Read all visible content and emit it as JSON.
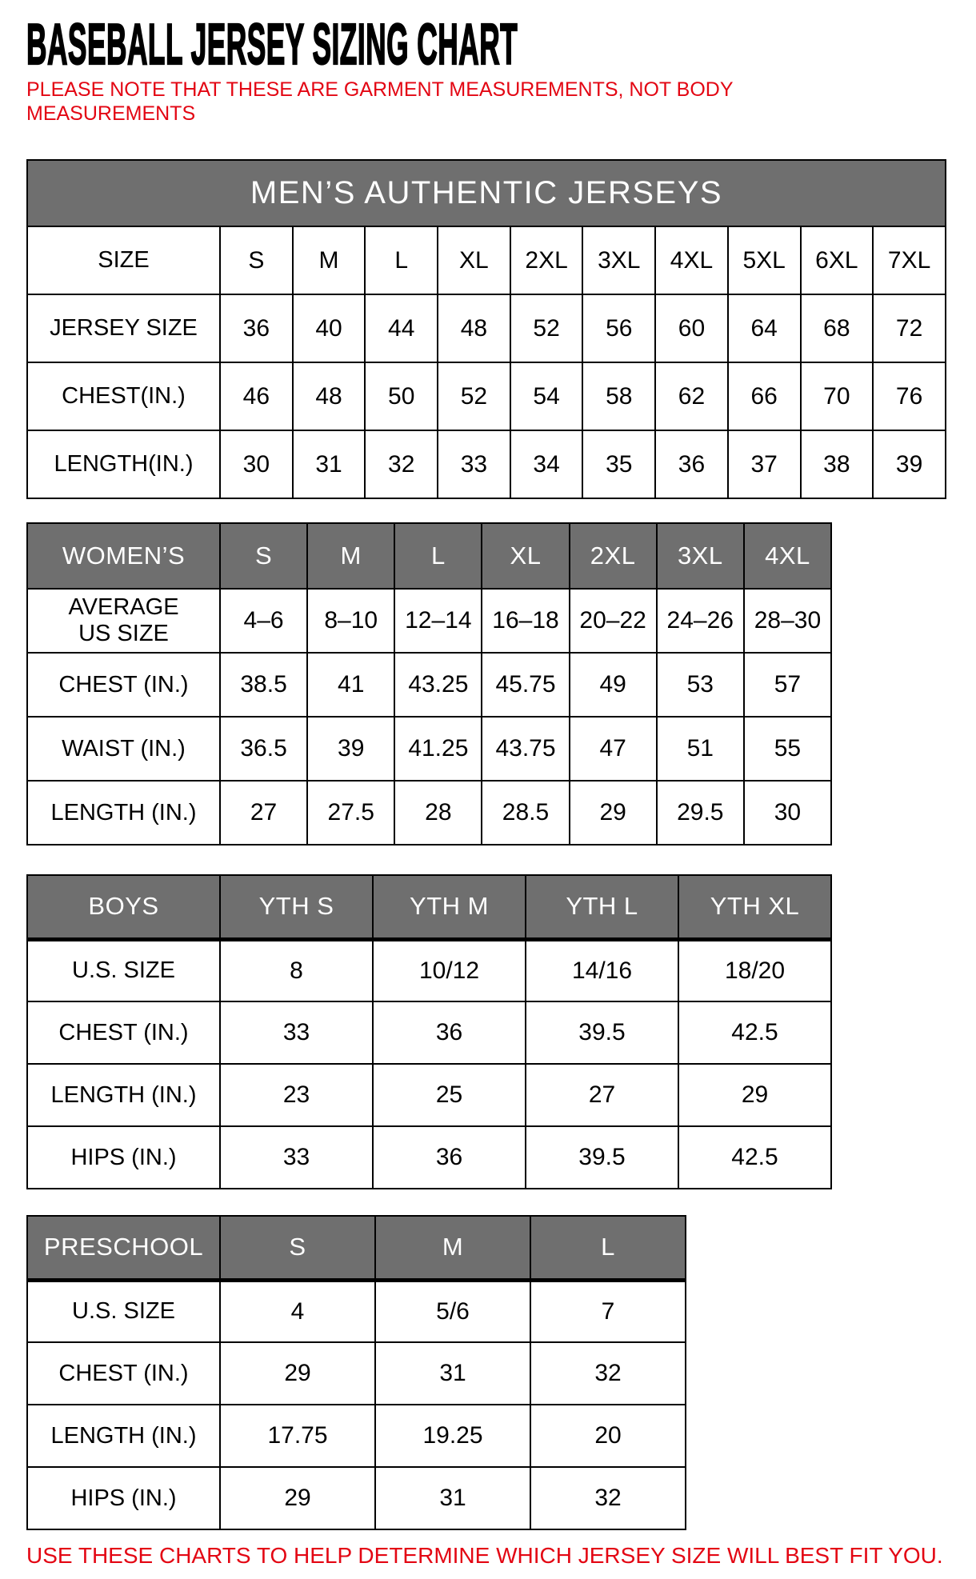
{
  "page": {
    "title": "BASEBALL JERSEY SIZING CHART",
    "note": "PLEASE NOTE THAT THESE ARE GARMENT MEASUREMENTS, NOT BODY MEASUREMENTS",
    "footer": "USE THESE CHARTS TO HELP DETERMINE WHICH JERSEY SIZE WILL BEST FIT YOU."
  },
  "colors": {
    "header_gray": "#6F6F6F",
    "accent_red": "#E30613",
    "border_black": "#000000",
    "text_black": "#000000",
    "page_bg": "#FFFFFF"
  },
  "tables": {
    "mens": {
      "banner": "MEN’S AUTHENTIC JERSEYS",
      "rows": [
        [
          "SIZE",
          "S",
          "M",
          "L",
          "XL",
          "2XL",
          "3XL",
          "4XL",
          "5XL",
          "6XL",
          "7XL"
        ],
        [
          "JERSEY SIZE",
          "36",
          "40",
          "44",
          "48",
          "52",
          "56",
          "60",
          "64",
          "68",
          "72"
        ],
        [
          "CHEST(IN.)",
          "46",
          "48",
          "50",
          "52",
          "54",
          "58",
          "62",
          "66",
          "70",
          "76"
        ],
        [
          "LENGTH(IN.)",
          "30",
          "31",
          "32",
          "33",
          "34",
          "35",
          "36",
          "37",
          "38",
          "39"
        ]
      ]
    },
    "womens": {
      "header_row": [
        "WOMEN’S",
        "S",
        "M",
        "L",
        "XL",
        "2XL",
        "3XL",
        "4XL"
      ],
      "rows": [
        [
          "AVERAGE\nUS SIZE",
          "4–6",
          "8–10",
          "12–14",
          "16–18",
          "20–22",
          "24–26",
          "28–30"
        ],
        [
          "CHEST (IN.)",
          "38.5",
          "41",
          "43.25",
          "45.75",
          "49",
          "53",
          "57"
        ],
        [
          "WAIST (IN.)",
          "36.5",
          "39",
          "41.25",
          "43.75",
          "47",
          "51",
          "55"
        ],
        [
          "LENGTH (IN.)",
          "27",
          "27.5",
          "28",
          "28.5",
          "29",
          "29.5",
          "30"
        ]
      ]
    },
    "boys": {
      "header_row": [
        "BOYS",
        "YTH S",
        "YTH M",
        "YTH L",
        "YTH XL"
      ],
      "rows": [
        [
          "U.S. SIZE",
          "8",
          "10/12",
          "14/16",
          "18/20"
        ],
        [
          "CHEST (IN.)",
          "33",
          "36",
          "39.5",
          "42.5"
        ],
        [
          "LENGTH (IN.)",
          "23",
          "25",
          "27",
          "29"
        ],
        [
          "HIPS (IN.)",
          "33",
          "36",
          "39.5",
          "42.5"
        ]
      ]
    },
    "preschool": {
      "header_row": [
        "PRESCHOOL",
        "S",
        "M",
        "L"
      ],
      "rows": [
        [
          "U.S. SIZE",
          "4",
          "5/6",
          "7"
        ],
        [
          "CHEST (IN.)",
          "29",
          "31",
          "32"
        ],
        [
          "LENGTH (IN.)",
          "17.75",
          "19.25",
          "20"
        ],
        [
          "HIPS (IN.)",
          "29",
          "31",
          "32"
        ]
      ]
    }
  }
}
